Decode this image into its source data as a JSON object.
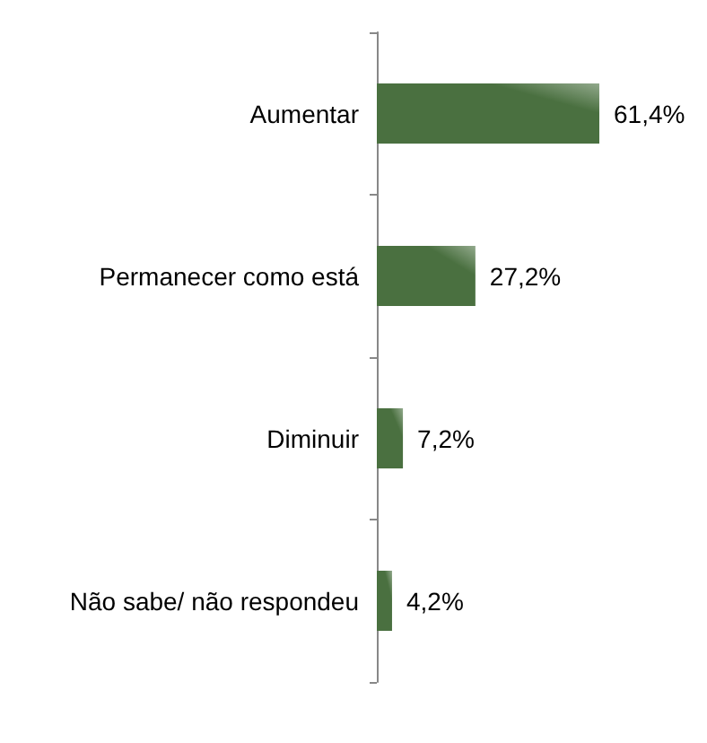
{
  "chart_data": {
    "type": "bar",
    "orientation": "horizontal",
    "categories": [
      "Aumentar",
      "Permanecer como está",
      "Diminuir",
      "Não sabe/ não respondeu"
    ],
    "values": [
      61.4,
      27.2,
      7.2,
      4.2
    ],
    "color": "#4a7040",
    "value_labels": [
      "61,4%",
      "27,2%",
      "7,2%",
      "4,2%"
    ]
  }
}
